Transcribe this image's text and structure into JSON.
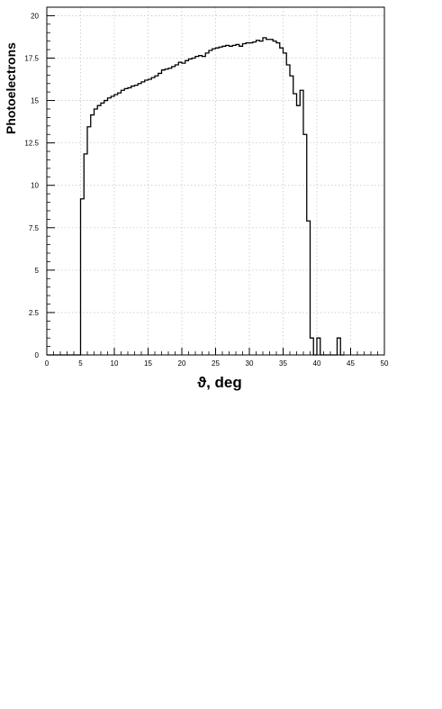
{
  "chart_data": {
    "type": "histogram",
    "title": "",
    "xlabel": "ϑ, deg",
    "ylabel": "Photoelectrons",
    "xlim": [
      0,
      50
    ],
    "ylim": [
      0,
      20.5
    ],
    "x_ticks": [
      0,
      5,
      10,
      15,
      20,
      25,
      30,
      35,
      40,
      45,
      50
    ],
    "x_tick_labels": [
      "0",
      "5",
      "10",
      "15",
      "20",
      "25",
      "30",
      "35",
      "40",
      "45",
      "50"
    ],
    "y_ticks": [
      0,
      2.5,
      5,
      7.5,
      10,
      12.5,
      15,
      17.5,
      20
    ],
    "y_tick_labels": [
      "0",
      "2.5",
      "5",
      "7.5",
      "10",
      "12.5",
      "15",
      "17.5",
      "20"
    ],
    "grid": true,
    "bin_width": 0.5,
    "series": [
      {
        "x": [
          4.75,
          5.25,
          5.75,
          6.25,
          6.75,
          7.25,
          7.75,
          8.25,
          8.75,
          9.25,
          9.75,
          10.25,
          10.75,
          11.25,
          11.75,
          12.25,
          12.75,
          13.25,
          13.75,
          14.25,
          14.75,
          15.25,
          15.75,
          16.25,
          16.75,
          17.25,
          17.75,
          18.25,
          18.75,
          19.25,
          19.75,
          20.25,
          20.75,
          21.25,
          21.75,
          22.25,
          22.75,
          23.25,
          23.75,
          24.25,
          24.75,
          25.25,
          25.75,
          26.25,
          26.75,
          27.25,
          27.75,
          28.25,
          28.75,
          29.25,
          29.75,
          30.25,
          30.75,
          31.25,
          31.75,
          32.25,
          32.75,
          33.25,
          33.75,
          34.25,
          34.75,
          35.25,
          35.75,
          36.25,
          36.75,
          37.25,
          37.75,
          38.25,
          38.75,
          39.25,
          39.75,
          40.25,
          40.75,
          41.25,
          41.75,
          42.25,
          42.75,
          43.25,
          43.75
        ],
        "y": [
          0,
          9.2,
          11.85,
          13.45,
          14.15,
          14.5,
          14.7,
          14.85,
          15.0,
          15.15,
          15.25,
          15.35,
          15.45,
          15.6,
          15.7,
          15.75,
          15.85,
          15.9,
          16.0,
          16.1,
          16.2,
          16.25,
          16.35,
          16.45,
          16.6,
          16.8,
          16.85,
          16.9,
          17.0,
          17.1,
          17.25,
          17.2,
          17.35,
          17.45,
          17.5,
          17.6,
          17.65,
          17.6,
          17.8,
          17.95,
          18.05,
          18.1,
          18.15,
          18.2,
          18.25,
          18.2,
          18.25,
          18.3,
          18.2,
          18.35,
          18.4,
          18.4,
          18.45,
          18.55,
          18.5,
          18.7,
          18.6,
          18.6,
          18.5,
          18.4,
          18.1,
          17.8,
          17.1,
          16.45,
          15.4,
          14.7,
          15.6,
          13.0,
          7.9,
          1.0,
          0,
          1.0,
          0,
          0,
          0,
          0,
          0,
          1.0,
          0
        ]
      }
    ]
  }
}
